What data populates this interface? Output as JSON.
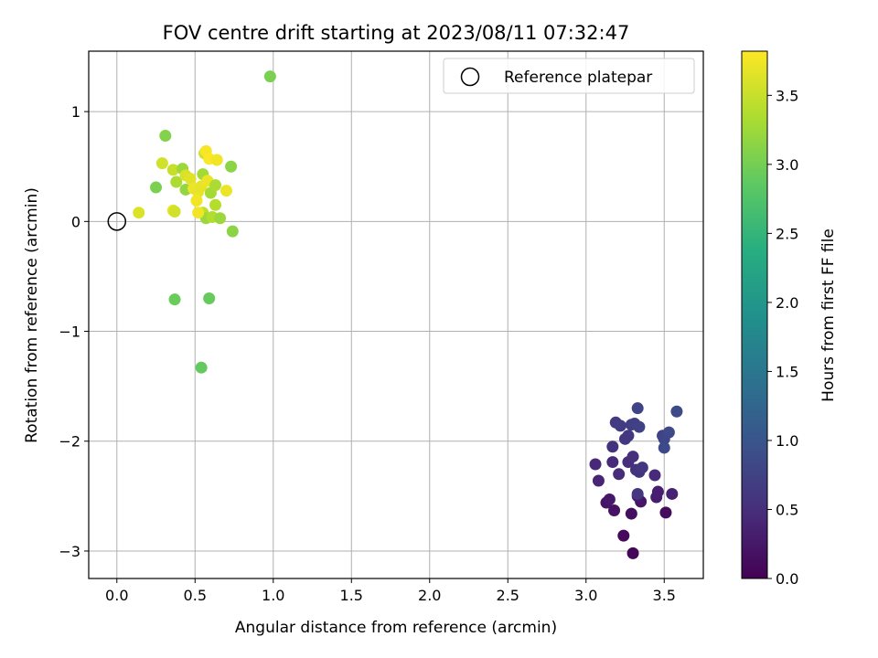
{
  "chart_data": {
    "type": "scatter",
    "title": "FOV centre drift starting at 2023/08/11 07:32:47",
    "xlabel": "Angular distance from reference (arcmin)",
    "ylabel": "Rotation from reference (arcmin)",
    "xlim": [
      -0.18,
      3.75
    ],
    "ylim": [
      -3.25,
      1.55
    ],
    "x_ticks": [
      0.0,
      0.5,
      1.0,
      1.5,
      2.0,
      2.5,
      3.0,
      3.5
    ],
    "x_tick_labels": [
      "0.0",
      "0.5",
      "1.0",
      "1.5",
      "2.0",
      "2.5",
      "3.0",
      "3.5"
    ],
    "y_ticks": [
      1,
      0,
      -1,
      -2,
      -3
    ],
    "y_tick_labels": [
      "1",
      "0",
      "−1",
      "−2",
      "−3"
    ],
    "grid": true,
    "legend": {
      "position": "top-right",
      "entries": [
        {
          "label": "Reference platepar",
          "marker": "hollow-circle"
        }
      ]
    },
    "reference_point": {
      "x": 0.0,
      "y": 0.0
    },
    "colorbar": {
      "label": "Hours from first FF file",
      "colormap": "viridis",
      "range": [
        0.0,
        3.82
      ],
      "ticks": [
        0.0,
        0.5,
        1.0,
        1.5,
        2.0,
        2.5,
        3.0,
        3.5
      ],
      "tick_labels": [
        "0.0",
        "0.5",
        "1.0",
        "1.5",
        "2.0",
        "2.5",
        "3.0",
        "3.5"
      ]
    },
    "points": [
      {
        "x": 3.3,
        "y": -3.02,
        "t": 0.05
      },
      {
        "x": 3.24,
        "y": -2.86,
        "t": 0.1
      },
      {
        "x": 3.29,
        "y": -2.66,
        "t": 0.15
      },
      {
        "x": 3.51,
        "y": -2.65,
        "t": 0.12
      },
      {
        "x": 3.18,
        "y": -2.63,
        "t": 0.18
      },
      {
        "x": 3.13,
        "y": -2.56,
        "t": 0.2
      },
      {
        "x": 3.15,
        "y": -2.53,
        "t": 0.25
      },
      {
        "x": 3.35,
        "y": -2.55,
        "t": 0.22
      },
      {
        "x": 3.33,
        "y": -2.5,
        "t": 0.28
      },
      {
        "x": 3.45,
        "y": -2.51,
        "t": 0.3
      },
      {
        "x": 3.46,
        "y": -2.46,
        "t": 0.33
      },
      {
        "x": 3.55,
        "y": -2.48,
        "t": 0.35
      },
      {
        "x": 3.33,
        "y": -2.48,
        "t": 0.6
      },
      {
        "x": 3.08,
        "y": -2.36,
        "t": 0.4
      },
      {
        "x": 3.06,
        "y": -2.21,
        "t": 0.42
      },
      {
        "x": 3.17,
        "y": -2.19,
        "t": 0.45
      },
      {
        "x": 3.21,
        "y": -2.3,
        "t": 0.48
      },
      {
        "x": 3.27,
        "y": -2.19,
        "t": 0.5
      },
      {
        "x": 3.3,
        "y": -2.14,
        "t": 0.52
      },
      {
        "x": 3.32,
        "y": -2.26,
        "t": 0.55
      },
      {
        "x": 3.34,
        "y": -2.28,
        "t": 0.58
      },
      {
        "x": 3.36,
        "y": -2.24,
        "t": 0.62
      },
      {
        "x": 3.44,
        "y": -2.31,
        "t": 0.45
      },
      {
        "x": 3.17,
        "y": -2.05,
        "t": 0.55
      },
      {
        "x": 3.25,
        "y": -1.98,
        "t": 0.6
      },
      {
        "x": 3.27,
        "y": -1.95,
        "t": 0.62
      },
      {
        "x": 3.19,
        "y": -1.83,
        "t": 0.65
      },
      {
        "x": 3.22,
        "y": -1.86,
        "t": 0.68
      },
      {
        "x": 3.29,
        "y": -1.85,
        "t": 0.7
      },
      {
        "x": 3.31,
        "y": -1.84,
        "t": 0.72
      },
      {
        "x": 3.34,
        "y": -1.87,
        "t": 0.74
      },
      {
        "x": 3.33,
        "y": -1.7,
        "t": 0.76
      },
      {
        "x": 3.49,
        "y": -1.95,
        "t": 0.78
      },
      {
        "x": 3.5,
        "y": -1.98,
        "t": 0.8
      },
      {
        "x": 3.53,
        "y": -1.92,
        "t": 0.82
      },
      {
        "x": 3.5,
        "y": -2.06,
        "t": 0.84
      },
      {
        "x": 3.58,
        "y": -1.73,
        "t": 0.86
      },
      {
        "x": 0.98,
        "y": 1.32,
        "t": 3.05
      },
      {
        "x": 0.31,
        "y": 0.78,
        "t": 3.1
      },
      {
        "x": 0.29,
        "y": 0.53,
        "t": 3.55
      },
      {
        "x": 0.25,
        "y": 0.31,
        "t": 3.05
      },
      {
        "x": 0.36,
        "y": 0.47,
        "t": 3.5
      },
      {
        "x": 0.38,
        "y": 0.36,
        "t": 3.35
      },
      {
        "x": 0.42,
        "y": 0.48,
        "t": 3.25
      },
      {
        "x": 0.44,
        "y": 0.42,
        "t": 3.6
      },
      {
        "x": 0.44,
        "y": 0.29,
        "t": 3.2
      },
      {
        "x": 0.47,
        "y": 0.39,
        "t": 3.65
      },
      {
        "x": 0.49,
        "y": 0.3,
        "t": 3.72
      },
      {
        "x": 0.52,
        "y": 0.27,
        "t": 3.7
      },
      {
        "x": 0.51,
        "y": 0.19,
        "t": 3.75
      },
      {
        "x": 0.54,
        "y": 0.32,
        "t": 3.68
      },
      {
        "x": 0.55,
        "y": 0.43,
        "t": 3.3
      },
      {
        "x": 0.56,
        "y": 0.62,
        "t": 3.55
      },
      {
        "x": 0.57,
        "y": 0.64,
        "t": 3.78
      },
      {
        "x": 0.59,
        "y": 0.57,
        "t": 3.8
      },
      {
        "x": 0.64,
        "y": 0.56,
        "t": 3.75
      },
      {
        "x": 0.58,
        "y": 0.37,
        "t": 3.72
      },
      {
        "x": 0.6,
        "y": 0.26,
        "t": 3.3
      },
      {
        "x": 0.63,
        "y": 0.33,
        "t": 3.35
      },
      {
        "x": 0.63,
        "y": 0.15,
        "t": 3.4
      },
      {
        "x": 0.55,
        "y": 0.08,
        "t": 3.45
      },
      {
        "x": 0.57,
        "y": 0.03,
        "t": 3.25
      },
      {
        "x": 0.61,
        "y": 0.04,
        "t": 3.38
      },
      {
        "x": 0.66,
        "y": 0.03,
        "t": 3.25
      },
      {
        "x": 0.7,
        "y": 0.28,
        "t": 3.72
      },
      {
        "x": 0.73,
        "y": 0.5,
        "t": 3.15
      },
      {
        "x": 0.74,
        "y": -0.09,
        "t": 3.15
      },
      {
        "x": 0.52,
        "y": 0.08,
        "t": 3.75
      },
      {
        "x": 0.36,
        "y": 0.1,
        "t": 3.7
      },
      {
        "x": 0.14,
        "y": 0.08,
        "t": 3.62
      },
      {
        "x": 0.37,
        "y": 0.09,
        "t": 3.55
      },
      {
        "x": 0.37,
        "y": -0.71,
        "t": 2.95
      },
      {
        "x": 0.59,
        "y": -0.7,
        "t": 2.92
      },
      {
        "x": 0.54,
        "y": -1.33,
        "t": 2.9
      }
    ]
  }
}
